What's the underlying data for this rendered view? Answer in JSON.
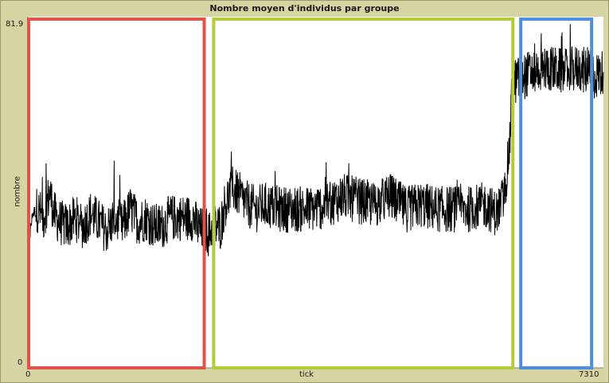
{
  "chart_data": {
    "type": "line",
    "title": "Nombre moyen d'individus par groupe",
    "xlabel": "tick",
    "ylabel": "nombre",
    "xlim": [
      0,
      7310
    ],
    "ylim": [
      0,
      81.9
    ],
    "x_tick_labels": [
      "0",
      "7310"
    ],
    "y_tick_labels": [
      "0",
      "81.9"
    ],
    "series": [
      {
        "name": "nombre",
        "color": "#000000",
        "points": [
          [
            0,
            19
          ],
          [
            25,
            31
          ],
          [
            60,
            36
          ],
          [
            120,
            37
          ],
          [
            200,
            35
          ],
          [
            280,
            41
          ],
          [
            330,
            36
          ],
          [
            400,
            34
          ],
          [
            500,
            33
          ],
          [
            600,
            35
          ],
          [
            700,
            33
          ],
          [
            800,
            36
          ],
          [
            900,
            34
          ],
          [
            1000,
            32
          ],
          [
            1100,
            35
          ],
          [
            1200,
            33
          ],
          [
            1300,
            37
          ],
          [
            1400,
            34
          ],
          [
            1500,
            35
          ],
          [
            1600,
            33
          ],
          [
            1700,
            33
          ],
          [
            1800,
            35
          ],
          [
            1900,
            35
          ],
          [
            2000,
            35
          ],
          [
            2100,
            35
          ],
          [
            2150,
            33
          ],
          [
            2200,
            32
          ],
          [
            2250,
            33
          ],
          [
            2300,
            31
          ],
          [
            2350,
            33
          ],
          [
            2450,
            33
          ],
          [
            2500,
            38
          ],
          [
            2600,
            42
          ],
          [
            2700,
            40
          ],
          [
            2800,
            38
          ],
          [
            2900,
            37
          ],
          [
            3000,
            38
          ],
          [
            3200,
            37
          ],
          [
            3400,
            37
          ],
          [
            3600,
            37
          ],
          [
            3800,
            38
          ],
          [
            4000,
            40
          ],
          [
            4200,
            39
          ],
          [
            4400,
            38
          ],
          [
            4600,
            40
          ],
          [
            4800,
            37
          ],
          [
            5000,
            38
          ],
          [
            5200,
            37
          ],
          [
            5400,
            37
          ],
          [
            5600,
            37
          ],
          [
            5800,
            38
          ],
          [
            5950,
            36
          ],
          [
            6050,
            40
          ],
          [
            6120,
            52
          ],
          [
            6150,
            66
          ],
          [
            6200,
            67
          ],
          [
            6400,
            69
          ],
          [
            6600,
            70
          ],
          [
            6800,
            69
          ],
          [
            7000,
            70
          ],
          [
            7200,
            68
          ],
          [
            7310,
            69
          ]
        ]
      }
    ],
    "annotation_boxes": [
      {
        "color": "#e0524a",
        "x_range": [
          0,
          2250
        ]
      },
      {
        "color": "#b4cc3a",
        "x_range": [
          2350,
          6170
        ]
      },
      {
        "color": "#4c8fde",
        "x_range": [
          6250,
          7170
        ]
      }
    ]
  }
}
